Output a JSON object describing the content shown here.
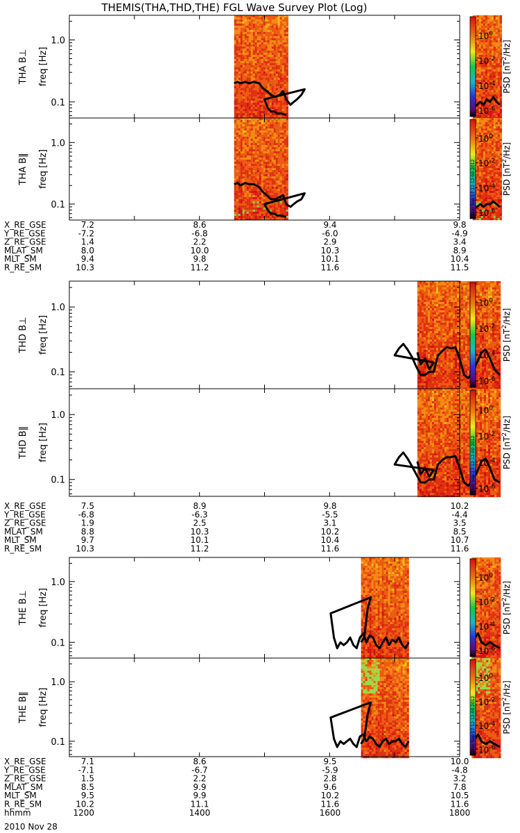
{
  "title": "THEMIS(THA,THD,THE) FGL Wave Survey Plot (Log)",
  "chart_data": {
    "type": "heatmap",
    "title": "THEMIS(THA,THD,THE) FGL Wave Survey Plot (Log)",
    "x_axis": {
      "ticks": [
        1200,
        1400,
        1600,
        1800
      ],
      "range": [
        1200,
        1800
      ],
      "units": "hhmm"
    },
    "y_axis": {
      "scale": "log",
      "ticks": [
        0.1,
        1.0
      ],
      "tick_labels": [
        "0.1",
        "1.0"
      ],
      "range": [
        0.055,
        2.5
      ],
      "label": "freq [Hz]"
    },
    "colorbar": {
      "scale": "log",
      "label": "PSD [nT^2/Hz]",
      "label_parts": {
        "pre": "PSD [nT",
        "sup": "2",
        "post": "/Hz]"
      },
      "ticks": [
        {
          "base": "10",
          "exp": "0"
        },
        {
          "base": "10",
          "exp": "-2"
        },
        {
          "base": "10",
          "exp": "-4"
        },
        {
          "base": "10",
          "exp": "-6"
        }
      ],
      "range_exp": [
        -6.5,
        1.5
      ],
      "colors": [
        "#000000",
        "#5a0a78",
        "#2b34d6",
        "#1fb4c4",
        "#16c74a",
        "#f2ea1c",
        "#f07a10",
        "#d41212"
      ]
    },
    "panels": [
      {
        "name": "THA B⊥",
        "probe": "THA",
        "label_prefix": "THA ",
        "comp": "B⊥",
        "data_ranges": [
          [
            1432,
            1520
          ],
          [
            1772,
            1797
          ]
        ],
        "profile": [
          [
            1432,
            0.2
          ],
          [
            1435,
            0.21
          ],
          [
            1438,
            0.2
          ],
          [
            1442,
            0.21
          ],
          [
            1446,
            0.2
          ],
          [
            1450,
            0.21
          ],
          [
            1455,
            0.2
          ],
          [
            1458,
            0.17
          ],
          [
            1462,
            0.15
          ],
          [
            1466,
            0.13
          ],
          [
            1470,
            0.12
          ],
          [
            1474,
            0.13
          ],
          [
            1477,
            0.15
          ],
          [
            1480,
            0.11
          ],
          [
            1484,
            0.09
          ],
          [
            1487,
            0.1
          ],
          [
            1490,
            0.11
          ],
          [
            1494,
            0.13
          ],
          [
            1497,
            0.16
          ],
          [
            1500,
            0.11
          ],
          [
            1503,
            0.08
          ],
          [
            1506,
            0.07
          ],
          [
            1509,
            0.07
          ],
          [
            1512,
            0.065
          ],
          [
            1515,
            0.065
          ],
          [
            1518,
            0.063
          ],
          [
            1520,
            0.062
          ]
        ],
        "profile2": [
          [
            1772,
            0.08
          ],
          [
            1776,
            0.09
          ],
          [
            1779,
            0.1
          ],
          [
            1782,
            0.09
          ],
          [
            1785,
            0.11
          ],
          [
            1788,
            0.1
          ],
          [
            1791,
            0.12
          ],
          [
            1794,
            0.1
          ],
          [
            1797,
            0.09
          ]
        ],
        "stamp": false
      },
      {
        "name": "THA B‖",
        "probe": "THA",
        "label_prefix": "THA ",
        "comp": "B‖",
        "data_ranges": [
          [
            1432,
            1520
          ],
          [
            1772,
            1797
          ]
        ],
        "profile": [
          [
            1432,
            0.21
          ],
          [
            1435,
            0.22
          ],
          [
            1438,
            0.2
          ],
          [
            1442,
            0.22
          ],
          [
            1446,
            0.21
          ],
          [
            1450,
            0.21
          ],
          [
            1455,
            0.19
          ],
          [
            1458,
            0.16
          ],
          [
            1462,
            0.14
          ],
          [
            1466,
            0.12
          ],
          [
            1470,
            0.12
          ],
          [
            1474,
            0.13
          ],
          [
            1477,
            0.14
          ],
          [
            1480,
            0.1
          ],
          [
            1484,
            0.09
          ],
          [
            1487,
            0.1
          ],
          [
            1490,
            0.11
          ],
          [
            1494,
            0.12
          ],
          [
            1497,
            0.15
          ],
          [
            1500,
            0.1
          ],
          [
            1503,
            0.08
          ],
          [
            1506,
            0.07
          ],
          [
            1509,
            0.07
          ],
          [
            1512,
            0.065
          ],
          [
            1515,
            0.065
          ],
          [
            1518,
            0.063
          ],
          [
            1520,
            0.062
          ]
        ],
        "profile2": [
          [
            1772,
            0.08
          ],
          [
            1776,
            0.09
          ],
          [
            1779,
            0.1
          ],
          [
            1782,
            0.09
          ],
          [
            1785,
            0.1
          ],
          [
            1788,
            0.1
          ],
          [
            1791,
            0.11
          ],
          [
            1794,
            0.1
          ],
          [
            1797,
            0.09
          ]
        ],
        "stamp": true
      },
      {
        "name": "THD B⊥",
        "probe": "THD",
        "label_prefix": "THD ",
        "comp": "B⊥",
        "data_ranges": [
          [
            1681,
            1797
          ]
        ],
        "profile": [
          [
            1681,
            0.2
          ],
          [
            1684,
            0.13
          ],
          [
            1688,
            0.16
          ],
          [
            1692,
            0.11
          ],
          [
            1696,
            0.14
          ],
          [
            1700,
            0.18
          ],
          [
            1704,
            0.23
          ],
          [
            1708,
            0.27
          ],
          [
            1712,
            0.22
          ],
          [
            1716,
            0.17
          ],
          [
            1720,
            0.12
          ],
          [
            1724,
            0.09
          ],
          [
            1728,
            0.09
          ],
          [
            1732,
            0.1
          ],
          [
            1736,
            0.1
          ],
          [
            1740,
            0.18
          ],
          [
            1744,
            0.21
          ],
          [
            1748,
            0.24
          ],
          [
            1752,
            0.23
          ],
          [
            1756,
            0.24
          ],
          [
            1760,
            0.16
          ],
          [
            1764,
            0.09
          ],
          [
            1768,
            0.08
          ],
          [
            1772,
            0.1
          ],
          [
            1776,
            0.14
          ],
          [
            1780,
            0.2
          ],
          [
            1784,
            0.22
          ],
          [
            1788,
            0.16
          ],
          [
            1792,
            0.11
          ],
          [
            1797,
            0.09
          ]
        ],
        "stamp": false
      },
      {
        "name": "THD B‖",
        "probe": "THD",
        "label_prefix": "THD ",
        "comp": "B‖",
        "data_ranges": [
          [
            1681,
            1797
          ]
        ],
        "profile": [
          [
            1681,
            0.19
          ],
          [
            1684,
            0.12
          ],
          [
            1688,
            0.15
          ],
          [
            1692,
            0.11
          ],
          [
            1696,
            0.14
          ],
          [
            1700,
            0.17
          ],
          [
            1704,
            0.22
          ],
          [
            1708,
            0.26
          ],
          [
            1712,
            0.21
          ],
          [
            1716,
            0.16
          ],
          [
            1720,
            0.12
          ],
          [
            1724,
            0.09
          ],
          [
            1728,
            0.09
          ],
          [
            1732,
            0.1
          ],
          [
            1736,
            0.1
          ],
          [
            1740,
            0.17
          ],
          [
            1744,
            0.2
          ],
          [
            1748,
            0.22
          ],
          [
            1752,
            0.22
          ],
          [
            1756,
            0.23
          ],
          [
            1760,
            0.15
          ],
          [
            1764,
            0.09
          ],
          [
            1768,
            0.08
          ],
          [
            1772,
            0.1
          ],
          [
            1776,
            0.13
          ],
          [
            1780,
            0.19
          ],
          [
            1784,
            0.21
          ],
          [
            1788,
            0.15
          ],
          [
            1792,
            0.1
          ],
          [
            1797,
            0.09
          ]
        ],
        "stamp": true
      },
      {
        "name": "THE B⊥",
        "probe": "THE",
        "label_prefix": "THE ",
        "comp": "B⊥",
        "data_ranges": [
          [
            1589,
            1673
          ],
          [
            1771,
            1797
          ]
        ],
        "profile": [
          [
            1589,
            0.1
          ],
          [
            1592,
            0.12
          ],
          [
            1595,
            0.35
          ],
          [
            1598,
            0.55
          ],
          [
            1601,
            0.3
          ],
          [
            1604,
            0.12
          ],
          [
            1607,
            0.08
          ],
          [
            1610,
            0.1
          ],
          [
            1613,
            0.09
          ],
          [
            1616,
            0.1
          ],
          [
            1619,
            0.12
          ],
          [
            1622,
            0.09
          ],
          [
            1625,
            0.08
          ],
          [
            1628,
            0.12
          ],
          [
            1631,
            0.14
          ],
          [
            1634,
            0.1
          ],
          [
            1637,
            0.13
          ],
          [
            1640,
            0.12
          ],
          [
            1643,
            0.09
          ],
          [
            1646,
            0.08
          ],
          [
            1649,
            0.1
          ],
          [
            1652,
            0.12
          ],
          [
            1655,
            0.09
          ],
          [
            1658,
            0.11
          ],
          [
            1661,
            0.1
          ],
          [
            1664,
            0.12
          ],
          [
            1667,
            0.09
          ],
          [
            1670,
            0.08
          ],
          [
            1673,
            0.1
          ]
        ],
        "profile2": [
          [
            1771,
            0.1
          ],
          [
            1774,
            0.12
          ],
          [
            1777,
            0.14
          ],
          [
            1780,
            0.1
          ],
          [
            1784,
            0.09
          ],
          [
            1788,
            0.1
          ],
          [
            1792,
            0.09
          ],
          [
            1797,
            0.08
          ]
        ],
        "stamp": false
      },
      {
        "name": "THE B‖",
        "probe": "THE",
        "label_prefix": "THE ",
        "comp": "B‖",
        "data_ranges": [
          [
            1589,
            1673
          ],
          [
            1771,
            1797
          ]
        ],
        "profile": [
          [
            1589,
            0.09
          ],
          [
            1592,
            0.11
          ],
          [
            1595,
            0.28
          ],
          [
            1598,
            0.45
          ],
          [
            1601,
            0.25
          ],
          [
            1604,
            0.11
          ],
          [
            1607,
            0.08
          ],
          [
            1610,
            0.1
          ],
          [
            1613,
            0.09
          ],
          [
            1616,
            0.1
          ],
          [
            1619,
            0.11
          ],
          [
            1622,
            0.09
          ],
          [
            1625,
            0.08
          ],
          [
            1628,
            0.12
          ],
          [
            1631,
            0.13
          ],
          [
            1634,
            0.1
          ],
          [
            1637,
            0.12
          ],
          [
            1640,
            0.11
          ],
          [
            1643,
            0.09
          ],
          [
            1646,
            0.08
          ],
          [
            1649,
            0.1
          ],
          [
            1652,
            0.11
          ],
          [
            1655,
            0.09
          ],
          [
            1658,
            0.1
          ],
          [
            1661,
            0.1
          ],
          [
            1664,
            0.11
          ],
          [
            1667,
            0.09
          ],
          [
            1670,
            0.08
          ],
          [
            1673,
            0.1
          ]
        ],
        "profile2": [
          [
            1771,
            0.09
          ],
          [
            1774,
            0.11
          ],
          [
            1777,
            0.13
          ],
          [
            1780,
            0.1
          ],
          [
            1784,
            0.09
          ],
          [
            1788,
            0.1
          ],
          [
            1792,
            0.09
          ],
          [
            1797,
            0.08
          ]
        ],
        "stamp": true
      }
    ],
    "stamp_text": "Mon Sep 17 12:12:00 2012",
    "ephemeris": [
      {
        "probe": "THA",
        "labels": [
          "X_RE_GSE",
          "Y_RE_GSE",
          "Z_RE_GSE",
          "MLAT_SM",
          "MLT_SM",
          "R_RE_SM"
        ],
        "values": [
          [
            "7.2",
            "8.6",
            "9.4",
            "9.8"
          ],
          [
            "-7.2",
            "-6.8",
            "-6.0",
            "-4.9"
          ],
          [
            "1.4",
            "2.2",
            "2.9",
            "3.4"
          ],
          [
            "8.0",
            "10.0",
            "10.3",
            "8.9"
          ],
          [
            "9.4",
            "9.8",
            "10.1",
            "10.4"
          ],
          [
            "10.3",
            "11.2",
            "11.6",
            "11.5"
          ]
        ]
      },
      {
        "probe": "THD",
        "labels": [
          "X_RE_GSE",
          "Y_RE_GSE",
          "Z_RE_GSE",
          "MLAT_SM",
          "MLT_SM",
          "R_RE_SM"
        ],
        "values": [
          [
            "7.5",
            "8.9",
            "9.8",
            "10.2"
          ],
          [
            "-6.8",
            "-6.3",
            "-5.5",
            "-4.4"
          ],
          [
            "1.9",
            "2.5",
            "3.1",
            "3.5"
          ],
          [
            "8.8",
            "10.3",
            "10.2",
            "8.5"
          ],
          [
            "9.7",
            "10.1",
            "10.4",
            "10.7"
          ],
          [
            "10.3",
            "11.2",
            "11.6",
            "11.6"
          ]
        ]
      },
      {
        "probe": "THE",
        "labels": [
          "X_RE_GSE",
          "Y_RE_GSE",
          "Z_RE_GSE",
          "MLAT_SM",
          "MLT_SM",
          "R_RE_SM",
          "hhmm"
        ],
        "values": [
          [
            "7.1",
            "8.6",
            "9.5",
            "10.0"
          ],
          [
            "-7.1",
            "-6.7",
            "-5.9",
            "-4.8"
          ],
          [
            "1.5",
            "2.2",
            "2.8",
            "3.2"
          ],
          [
            "8.5",
            "9.9",
            "9.6",
            "7.8"
          ],
          [
            "9.5",
            "9.9",
            "10.2",
            "10.5"
          ],
          [
            "10.2",
            "11.1",
            "11.6",
            "11.6"
          ],
          [
            "1200",
            "1400",
            "1600",
            "1800"
          ]
        ]
      }
    ],
    "date": "2010 Nov 28"
  }
}
